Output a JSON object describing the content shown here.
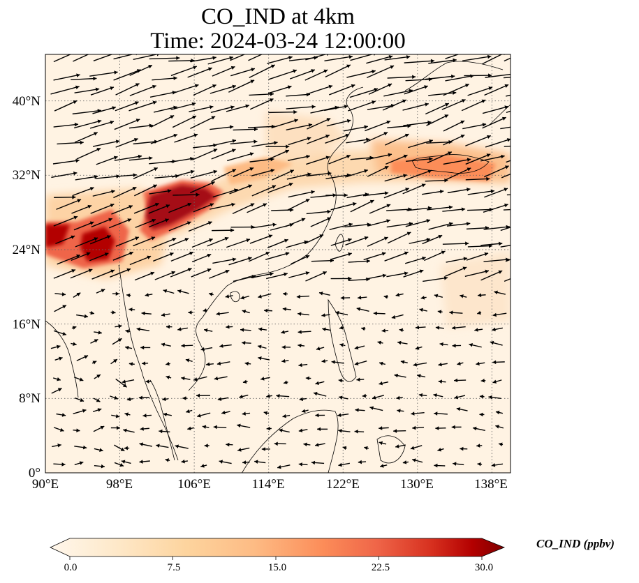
{
  "title": {
    "line1": "CO_IND at 4km",
    "line2": "Time: 2024-03-24 12:00:00"
  },
  "map": {
    "lon_range": [
      90,
      140
    ],
    "lat_range": [
      0,
      45
    ],
    "gridline_style": "dotted",
    "lat_ticks": [
      {
        "label": "0°",
        "lat": 0
      },
      {
        "label": "8°N",
        "lat": 8
      },
      {
        "label": "16°N",
        "lat": 16
      },
      {
        "label": "24°N",
        "lat": 24
      },
      {
        "label": "32°N",
        "lat": 32
      },
      {
        "label": "40°N",
        "lat": 40
      }
    ],
    "lon_ticks": [
      {
        "label": "90°E",
        "lon": 90
      },
      {
        "label": "98°E",
        "lon": 98
      },
      {
        "label": "106°E",
        "lon": 106
      },
      {
        "label": "114°E",
        "lon": 114
      },
      {
        "label": "122°E",
        "lon": 122
      },
      {
        "label": "130°E",
        "lon": 130
      },
      {
        "label": "138°E",
        "lon": 138
      }
    ]
  },
  "colorbar": {
    "label": "CO_IND (ppbv)",
    "ticks": [
      "0.0",
      "7.5",
      "15.0",
      "22.5",
      "30.0"
    ],
    "min": 0,
    "max": 30,
    "colormap": "OrRd",
    "extend": "both"
  },
  "colors": {
    "low": "#fff7ec",
    "mid": "#fdbb84",
    "high": "#b30000",
    "max": "#7f0000",
    "arrows": "#000000",
    "coast": "#000000"
  }
}
